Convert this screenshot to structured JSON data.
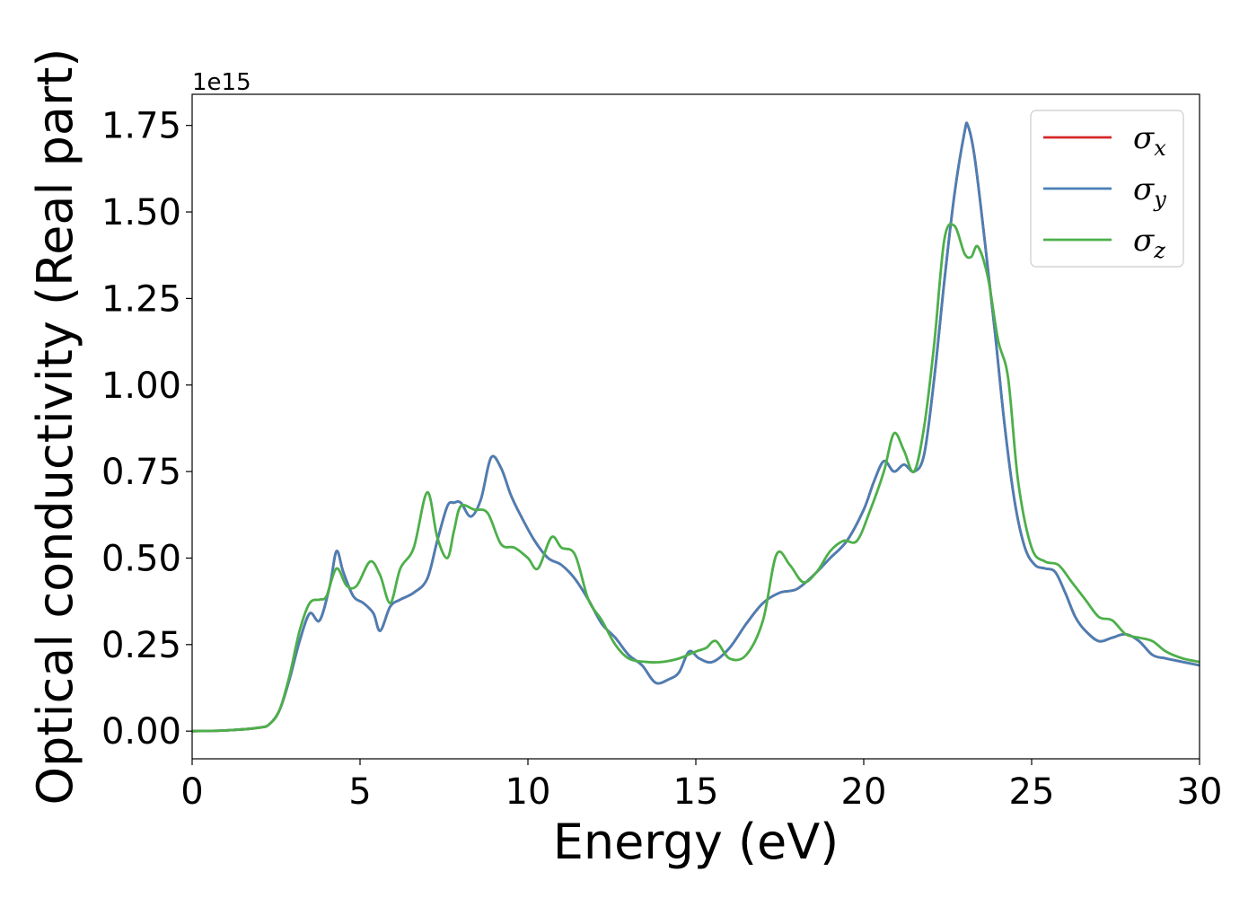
{
  "chart_data": {
    "type": "line",
    "xlabel": "Energy (eV)",
    "ylabel": "Optical conductivity (Real part)",
    "y_offset_label": "1e15",
    "xlim": [
      0,
      30
    ],
    "ylim": [
      -0.08,
      1.84
    ],
    "x_ticks": [
      0,
      5,
      10,
      15,
      20,
      25,
      30
    ],
    "x_tick_labels": [
      "0",
      "5",
      "10",
      "15",
      "20",
      "25",
      "30"
    ],
    "y_ticks": [
      0,
      0.25,
      0.5,
      0.75,
      1.0,
      1.25,
      1.5,
      1.75
    ],
    "y_tick_labels": [
      "0.00",
      "0.25",
      "0.50",
      "0.75",
      "1.00",
      "1.25",
      "1.50",
      "1.75"
    ],
    "grid": false,
    "legend_position": "top-right",
    "series": [
      {
        "name": "σ",
        "subscript": "x",
        "color": "#d62728",
        "x": [
          0,
          1,
          2,
          2.3,
          2.6,
          2.9,
          3.2,
          3.5,
          3.8,
          4.1,
          4.3,
          4.5,
          4.8,
          5.1,
          5.4,
          5.6,
          5.9,
          6.2,
          6.6,
          7.0,
          7.3,
          7.6,
          7.8,
          8.0,
          8.3,
          8.6,
          8.9,
          9.2,
          9.5,
          9.8,
          10.2,
          10.6,
          11.0,
          11.4,
          11.8,
          12.2,
          12.6,
          13.0,
          13.4,
          13.8,
          14.2,
          14.5,
          14.8,
          15.1,
          15.5,
          16.0,
          16.5,
          17.0,
          17.5,
          18.0,
          18.5,
          19.0,
          19.5,
          20.0,
          20.3,
          20.6,
          20.9,
          21.2,
          21.5,
          21.8,
          22.1,
          22.4,
          22.7,
          23.0,
          23.1,
          23.3,
          23.6,
          23.9,
          24.2,
          24.5,
          24.8,
          25.1,
          25.4,
          25.7,
          26.0,
          26.3,
          26.6,
          27.0,
          27.4,
          27.8,
          28.2,
          28.6,
          29.0,
          29.5,
          30
        ],
        "y": [
          0.0,
          0.002,
          0.01,
          0.02,
          0.06,
          0.15,
          0.26,
          0.34,
          0.32,
          0.42,
          0.52,
          0.46,
          0.39,
          0.37,
          0.34,
          0.29,
          0.36,
          0.38,
          0.4,
          0.44,
          0.55,
          0.65,
          0.66,
          0.66,
          0.62,
          0.67,
          0.79,
          0.76,
          0.68,
          0.62,
          0.55,
          0.5,
          0.48,
          0.44,
          0.38,
          0.31,
          0.27,
          0.22,
          0.19,
          0.14,
          0.15,
          0.17,
          0.23,
          0.21,
          0.2,
          0.24,
          0.31,
          0.37,
          0.4,
          0.41,
          0.45,
          0.5,
          0.55,
          0.64,
          0.72,
          0.78,
          0.75,
          0.77,
          0.75,
          0.8,
          1.02,
          1.3,
          1.55,
          1.73,
          1.75,
          1.66,
          1.42,
          1.16,
          0.88,
          0.66,
          0.53,
          0.48,
          0.47,
          0.46,
          0.4,
          0.33,
          0.29,
          0.26,
          0.27,
          0.28,
          0.26,
          0.22,
          0.21,
          0.2,
          0.19
        ]
      },
      {
        "name": "σ",
        "subscript": "y",
        "color": "#4a7fb5",
        "x": [
          0,
          1,
          2,
          2.3,
          2.6,
          2.9,
          3.2,
          3.5,
          3.8,
          4.1,
          4.3,
          4.5,
          4.8,
          5.1,
          5.4,
          5.6,
          5.9,
          6.2,
          6.6,
          7.0,
          7.3,
          7.6,
          7.8,
          8.0,
          8.3,
          8.6,
          8.9,
          9.2,
          9.5,
          9.8,
          10.2,
          10.6,
          11.0,
          11.4,
          11.8,
          12.2,
          12.6,
          13.0,
          13.4,
          13.8,
          14.2,
          14.5,
          14.8,
          15.1,
          15.5,
          16.0,
          16.5,
          17.0,
          17.5,
          18.0,
          18.5,
          19.0,
          19.5,
          20.0,
          20.3,
          20.6,
          20.9,
          21.2,
          21.5,
          21.8,
          22.1,
          22.4,
          22.7,
          23.0,
          23.1,
          23.3,
          23.6,
          23.9,
          24.2,
          24.5,
          24.8,
          25.1,
          25.4,
          25.7,
          26.0,
          26.3,
          26.6,
          27.0,
          27.4,
          27.8,
          28.2,
          28.6,
          29.0,
          29.5,
          30
        ],
        "y": [
          0.0,
          0.002,
          0.01,
          0.02,
          0.06,
          0.15,
          0.26,
          0.34,
          0.32,
          0.42,
          0.52,
          0.46,
          0.39,
          0.37,
          0.34,
          0.29,
          0.36,
          0.38,
          0.4,
          0.44,
          0.55,
          0.65,
          0.66,
          0.66,
          0.62,
          0.67,
          0.79,
          0.76,
          0.68,
          0.62,
          0.55,
          0.5,
          0.48,
          0.44,
          0.38,
          0.31,
          0.27,
          0.22,
          0.19,
          0.14,
          0.15,
          0.17,
          0.23,
          0.21,
          0.2,
          0.24,
          0.31,
          0.37,
          0.4,
          0.41,
          0.45,
          0.5,
          0.55,
          0.64,
          0.72,
          0.78,
          0.75,
          0.77,
          0.75,
          0.8,
          1.02,
          1.3,
          1.55,
          1.73,
          1.75,
          1.66,
          1.42,
          1.16,
          0.88,
          0.66,
          0.53,
          0.48,
          0.47,
          0.46,
          0.4,
          0.33,
          0.29,
          0.26,
          0.27,
          0.28,
          0.26,
          0.22,
          0.21,
          0.2,
          0.19
        ]
      },
      {
        "name": "σ",
        "subscript": "z",
        "color": "#4daf4a",
        "x": [
          0,
          1,
          2,
          2.3,
          2.6,
          2.9,
          3.2,
          3.5,
          3.8,
          4.0,
          4.3,
          4.6,
          4.9,
          5.3,
          5.6,
          5.9,
          6.2,
          6.6,
          7.0,
          7.3,
          7.6,
          7.8,
          8.0,
          8.4,
          8.8,
          9.2,
          9.6,
          10.0,
          10.3,
          10.7,
          11.0,
          11.4,
          11.8,
          12.2,
          12.6,
          13.0,
          13.5,
          14.0,
          14.5,
          15.0,
          15.3,
          15.6,
          16.0,
          16.5,
          17.0,
          17.4,
          17.8,
          18.2,
          18.6,
          19.0,
          19.4,
          19.8,
          20.2,
          20.6,
          20.9,
          21.2,
          21.5,
          21.8,
          22.1,
          22.4,
          22.7,
          23.0,
          23.2,
          23.4,
          23.7,
          24.0,
          24.3,
          24.6,
          25.0,
          25.4,
          25.8,
          26.2,
          26.6,
          27.0,
          27.4,
          27.8,
          28.2,
          28.6,
          29.0,
          29.5,
          30
        ],
        "y": [
          0.0,
          0.002,
          0.01,
          0.02,
          0.06,
          0.16,
          0.29,
          0.37,
          0.38,
          0.39,
          0.47,
          0.42,
          0.42,
          0.49,
          0.45,
          0.37,
          0.47,
          0.53,
          0.69,
          0.56,
          0.5,
          0.58,
          0.65,
          0.64,
          0.63,
          0.54,
          0.53,
          0.5,
          0.47,
          0.56,
          0.53,
          0.51,
          0.38,
          0.32,
          0.25,
          0.21,
          0.2,
          0.2,
          0.21,
          0.23,
          0.24,
          0.26,
          0.21,
          0.22,
          0.32,
          0.51,
          0.48,
          0.43,
          0.46,
          0.52,
          0.55,
          0.55,
          0.64,
          0.75,
          0.86,
          0.81,
          0.75,
          0.88,
          1.12,
          1.42,
          1.46,
          1.38,
          1.37,
          1.4,
          1.31,
          1.13,
          1.02,
          0.72,
          0.53,
          0.49,
          0.48,
          0.43,
          0.38,
          0.33,
          0.32,
          0.28,
          0.27,
          0.26,
          0.23,
          0.21,
          0.2
        ]
      }
    ]
  }
}
